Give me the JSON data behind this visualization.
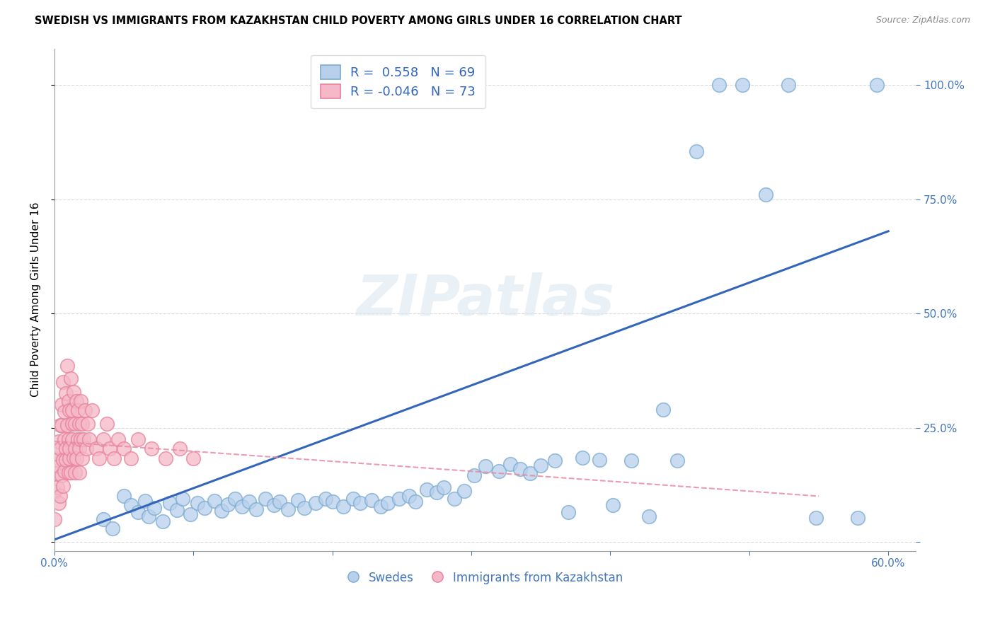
{
  "title": "SWEDISH VS IMMIGRANTS FROM KAZAKHSTAN CHILD POVERTY AMONG GIRLS UNDER 16 CORRELATION CHART",
  "source": "Source: ZipAtlas.com",
  "ylabel": "Child Poverty Among Girls Under 16",
  "xlim": [
    0.0,
    0.62
  ],
  "ylim": [
    -0.02,
    1.08
  ],
  "xtick_positions": [
    0.0,
    0.1,
    0.2,
    0.3,
    0.4,
    0.5,
    0.6
  ],
  "ytick_positions": [
    0.0,
    0.25,
    0.5,
    0.75,
    1.0
  ],
  "grid_color": "#cccccc",
  "background_color": "#ffffff",
  "blue_marker_face": "#b8d0ec",
  "blue_marker_edge": "#7aaad0",
  "pink_marker_face": "#f5b8c8",
  "pink_marker_edge": "#e8809a",
  "blue_line_color": "#3366bb",
  "pink_line_color": "#e88aa0",
  "R_blue": 0.558,
  "N_blue": 69,
  "R_pink": -0.046,
  "N_pink": 73,
  "legend_label_blue": "Swedes",
  "legend_label_pink": "Immigrants from Kazakhstan",
  "watermark": "ZIPatlas",
  "blue_x": [
    0.035,
    0.042,
    0.05,
    0.055,
    0.06,
    0.065,
    0.068,
    0.072,
    0.078,
    0.083,
    0.088,
    0.092,
    0.098,
    0.103,
    0.108,
    0.115,
    0.12,
    0.125,
    0.13,
    0.135,
    0.14,
    0.145,
    0.152,
    0.158,
    0.162,
    0.168,
    0.175,
    0.18,
    0.188,
    0.195,
    0.2,
    0.208,
    0.215,
    0.22,
    0.228,
    0.235,
    0.24,
    0.248,
    0.255,
    0.26,
    0.268,
    0.275,
    0.28,
    0.288,
    0.295,
    0.302,
    0.31,
    0.32,
    0.328,
    0.335,
    0.342,
    0.35,
    0.36,
    0.37,
    0.38,
    0.392,
    0.402,
    0.415,
    0.428,
    0.438,
    0.448,
    0.462,
    0.478,
    0.495,
    0.512,
    0.528,
    0.548,
    0.578,
    0.592
  ],
  "blue_y": [
    0.05,
    0.03,
    0.1,
    0.08,
    0.065,
    0.09,
    0.055,
    0.075,
    0.045,
    0.085,
    0.07,
    0.095,
    0.06,
    0.085,
    0.075,
    0.09,
    0.068,
    0.082,
    0.095,
    0.078,
    0.088,
    0.072,
    0.095,
    0.08,
    0.088,
    0.072,
    0.092,
    0.075,
    0.085,
    0.095,
    0.088,
    0.078,
    0.095,
    0.085,
    0.092,
    0.078,
    0.085,
    0.095,
    0.1,
    0.088,
    0.115,
    0.108,
    0.12,
    0.095,
    0.112,
    0.145,
    0.165,
    0.155,
    0.17,
    0.16,
    0.15,
    0.168,
    0.178,
    0.065,
    0.185,
    0.18,
    0.08,
    0.178,
    0.055,
    0.29,
    0.178,
    0.855,
    1.0,
    1.0,
    0.76,
    1.0,
    0.052,
    0.052,
    1.0
  ],
  "pink_x": [
    0.0,
    0.0,
    0.001,
    0.001,
    0.002,
    0.002,
    0.003,
    0.003,
    0.003,
    0.004,
    0.004,
    0.004,
    0.005,
    0.005,
    0.005,
    0.006,
    0.006,
    0.006,
    0.007,
    0.007,
    0.007,
    0.008,
    0.008,
    0.008,
    0.009,
    0.009,
    0.01,
    0.01,
    0.01,
    0.011,
    0.011,
    0.011,
    0.012,
    0.012,
    0.013,
    0.013,
    0.013,
    0.014,
    0.014,
    0.015,
    0.015,
    0.015,
    0.016,
    0.016,
    0.017,
    0.017,
    0.018,
    0.018,
    0.018,
    0.019,
    0.019,
    0.02,
    0.02,
    0.021,
    0.022,
    0.023,
    0.024,
    0.025,
    0.027,
    0.03,
    0.032,
    0.035,
    0.038,
    0.04,
    0.043,
    0.046,
    0.05,
    0.055,
    0.06,
    0.07,
    0.08,
    0.09,
    0.1
  ],
  "pink_y": [
    0.05,
    0.11,
    0.15,
    0.2,
    0.12,
    0.18,
    0.085,
    0.22,
    0.165,
    0.255,
    0.1,
    0.205,
    0.145,
    0.3,
    0.255,
    0.18,
    0.35,
    0.122,
    0.225,
    0.285,
    0.155,
    0.325,
    0.205,
    0.18,
    0.385,
    0.255,
    0.152,
    0.308,
    0.225,
    0.182,
    0.288,
    0.205,
    0.358,
    0.152,
    0.258,
    0.288,
    0.225,
    0.185,
    0.328,
    0.205,
    0.152,
    0.258,
    0.308,
    0.182,
    0.225,
    0.288,
    0.205,
    0.152,
    0.258,
    0.225,
    0.308,
    0.182,
    0.258,
    0.225,
    0.288,
    0.205,
    0.258,
    0.225,
    0.288,
    0.205,
    0.182,
    0.225,
    0.258,
    0.205,
    0.182,
    0.225,
    0.205,
    0.182,
    0.225,
    0.205,
    0.182,
    0.205,
    0.182
  ],
  "blue_trend_x0": 0.0,
  "blue_trend_y0": 0.005,
  "blue_trend_x1": 0.6,
  "blue_trend_y1": 0.68,
  "pink_trend_x0": 0.0,
  "pink_trend_y0": 0.22,
  "pink_trend_x1": 0.55,
  "pink_trend_y1": 0.1
}
